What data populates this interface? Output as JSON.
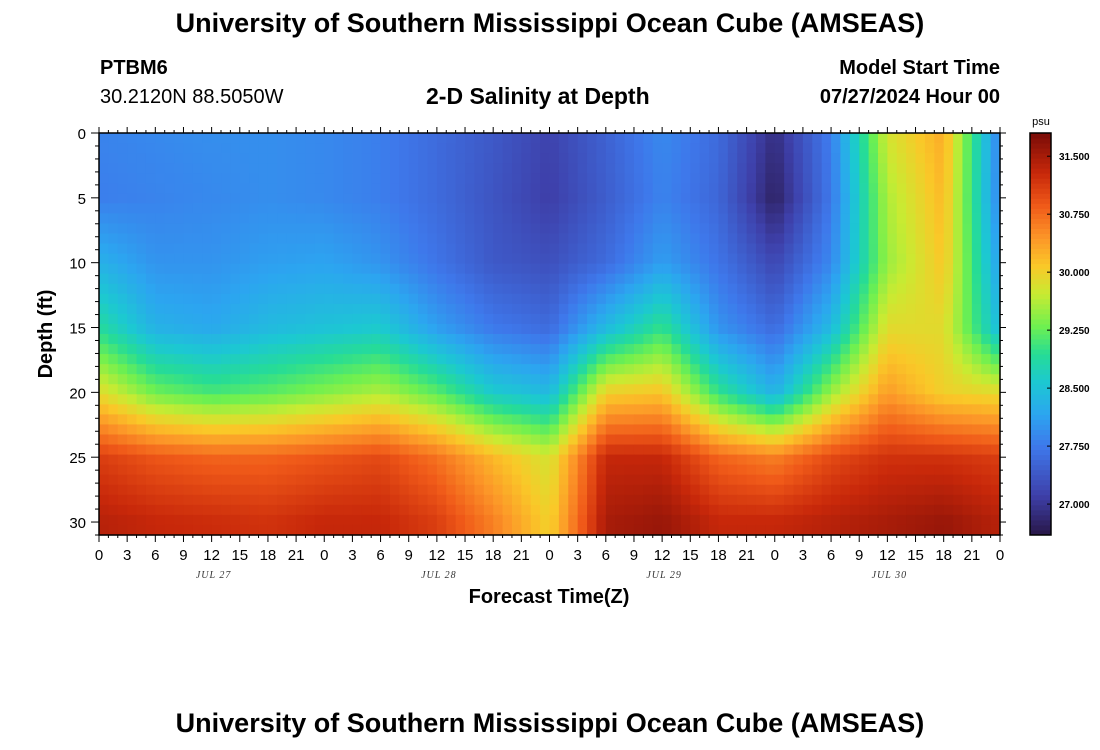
{
  "header": {
    "title": "University of Southern Mississippi Ocean Cube (AMSEAS)",
    "station_id": "PTBM6",
    "coordinates": "30.2120N  88.5050W",
    "subtitle": "2-D Salinity at Depth",
    "model_start_label": "Model Start Time",
    "model_start_value": "07/27/2024 Hour 00"
  },
  "footer": {
    "title": "University of Southern Mississippi Ocean Cube (AMSEAS)"
  },
  "chart_data": {
    "type": "heatmap",
    "xlabel": "Forecast Time(Z)",
    "ylabel": "Depth (ft)",
    "x_tick_labels": [
      "0",
      "3",
      "6",
      "9",
      "12",
      "15",
      "18",
      "21",
      "0",
      "3",
      "6",
      "9",
      "12",
      "15",
      "18",
      "21",
      "0",
      "3",
      "6",
      "9",
      "12",
      "15",
      "18",
      "21",
      "0",
      "3",
      "6",
      "9",
      "12",
      "15",
      "18",
      "21",
      "0"
    ],
    "day_labels": [
      "JUL 27",
      "JUL 28",
      "JUL 29",
      "JUL 30"
    ],
    "xlim_hours": [
      0,
      96
    ],
    "y_ticks": [
      0,
      5,
      10,
      15,
      20,
      25,
      30
    ],
    "ylim": [
      0,
      31
    ],
    "y_reversed": true,
    "colorbar": {
      "unit": "psu",
      "ticks": [
        "27.000",
        "27.750",
        "28.500",
        "29.250",
        "30.000",
        "30.750",
        "31.500"
      ],
      "min": 26.6,
      "max": 31.8
    },
    "hours": [
      0,
      6,
      12,
      18,
      24,
      30,
      36,
      42,
      48,
      54,
      60,
      66,
      72,
      78,
      84,
      90,
      96
    ],
    "depths": [
      0,
      5,
      10,
      15,
      20,
      25,
      30
    ],
    "values": [
      [
        27.85,
        27.9,
        27.95,
        27.95,
        27.9,
        27.8,
        27.6,
        27.4,
        27.15,
        27.5,
        27.9,
        27.6,
        26.9,
        27.8,
        29.8,
        30.3,
        27.8
      ],
      [
        27.8,
        27.85,
        27.9,
        27.95,
        27.9,
        27.8,
        27.6,
        27.35,
        27.1,
        27.45,
        27.85,
        27.55,
        26.75,
        27.75,
        29.6,
        30.2,
        27.85
      ],
      [
        28.3,
        28.0,
        28.0,
        28.1,
        28.15,
        28.0,
        27.7,
        27.4,
        27.3,
        27.6,
        28.1,
        27.7,
        27.2,
        27.9,
        29.5,
        30.1,
        28.1
      ],
      [
        28.9,
        28.3,
        28.2,
        28.4,
        28.5,
        28.6,
        28.1,
        27.75,
        27.6,
        28.4,
        29.0,
        28.0,
        27.6,
        28.4,
        29.9,
        29.9,
        28.4
      ],
      [
        29.9,
        29.3,
        29.1,
        29.2,
        29.4,
        29.6,
        29.2,
        28.6,
        28.4,
        30.0,
        30.1,
        29.0,
        28.3,
        29.5,
        30.4,
        30.0,
        29.9
      ],
      [
        31.1,
        30.9,
        30.8,
        30.8,
        30.9,
        31.0,
        30.7,
        30.2,
        29.8,
        31.3,
        31.3,
        30.8,
        30.6,
        31.0,
        31.2,
        31.2,
        31.1
      ],
      [
        31.4,
        31.3,
        31.25,
        31.2,
        31.3,
        31.3,
        31.1,
        30.6,
        30.0,
        31.5,
        31.6,
        31.3,
        31.3,
        31.4,
        31.5,
        31.6,
        31.4
      ]
    ]
  }
}
